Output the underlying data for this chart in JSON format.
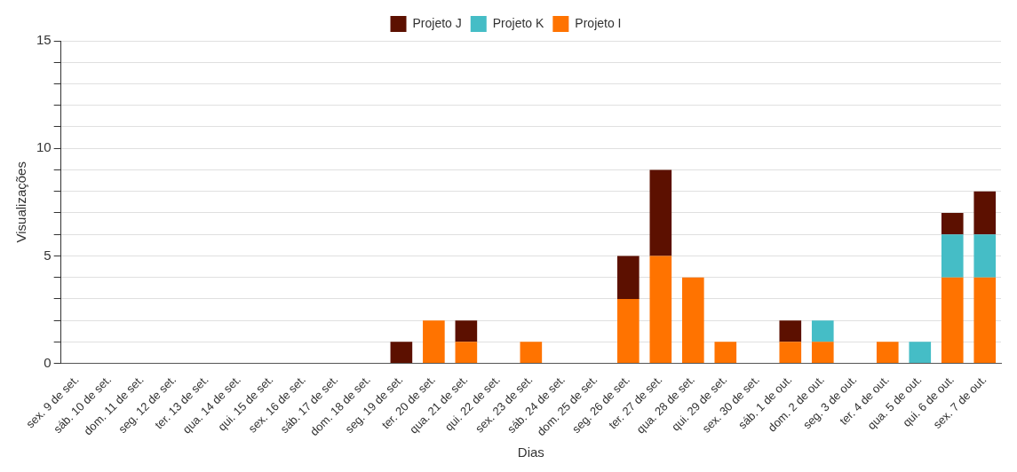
{
  "chart_data": {
    "type": "bar",
    "stacked": true,
    "xlabel": "Dias",
    "ylabel": "Visualizações",
    "categories": [
      "sex. 9 de set.",
      "sáb. 10 de set.",
      "dom. 11 de set.",
      "seg. 12 de set.",
      "ter. 13 de set.",
      "qua. 14 de set.",
      "qui. 15 de set.",
      "sex. 16 de set.",
      "sáb. 17 de set.",
      "dom. 18 de set.",
      "seg. 19 de set.",
      "ter. 20 de set.",
      "qua. 21 de set.",
      "qui. 22 de set.",
      "sex. 23 de set.",
      "sáb. 24 de set.",
      "dom. 25 de set.",
      "seg. 26 de set.",
      "ter. 27 de set.",
      "qua. 28 de set.",
      "qui. 29 de set.",
      "sex. 30 de set.",
      "sáb. 1 de out.",
      "dom. 2 de out.",
      "seg. 3 de out.",
      "ter. 4 de out.",
      "qua. 5 de out.",
      "qui. 6 de out.",
      "sex. 7 de out."
    ],
    "series": [
      {
        "name": "Projeto I",
        "color": "#ff7300",
        "values": [
          0,
          0,
          0,
          0,
          0,
          0,
          0,
          0,
          0,
          0,
          0,
          2,
          1,
          0,
          1,
          0,
          0,
          3,
          5,
          4,
          1,
          0,
          1,
          1,
          0,
          1,
          0,
          4,
          4
        ]
      },
      {
        "name": "Projeto K",
        "color": "#45bdc6",
        "values": [
          0,
          0,
          0,
          0,
          0,
          0,
          0,
          0,
          0,
          0,
          0,
          0,
          0,
          0,
          0,
          0,
          0,
          0,
          0,
          0,
          0,
          0,
          0,
          1,
          0,
          0,
          1,
          2,
          2
        ]
      },
      {
        "name": "Projeto J",
        "color": "#5c1000",
        "values": [
          0,
          0,
          0,
          0,
          0,
          0,
          0,
          0,
          0,
          0,
          1,
          0,
          1,
          0,
          0,
          0,
          0,
          2,
          4,
          0,
          0,
          0,
          1,
          0,
          0,
          0,
          0,
          1,
          2
        ]
      }
    ],
    "ylim": [
      0,
      15
    ],
    "yticks": [
      0,
      {
        "value": 1,
        "label": null
      },
      {
        "value": 2,
        "label": null
      },
      {
        "value": 3,
        "label": null
      },
      {
        "value": 4,
        "label": null
      },
      5,
      {
        "value": 6,
        "label": null
      },
      {
        "value": 7,
        "label": null
      },
      {
        "value": 8,
        "label": null
      },
      {
        "value": 9,
        "label": null
      },
      10,
      {
        "value": 11,
        "label": null
      },
      {
        "value": 12,
        "label": null
      },
      {
        "value": 13,
        "label": null
      },
      {
        "value": 14,
        "label": null
      },
      15
    ],
    "grid": "y",
    "legend": "top"
  }
}
